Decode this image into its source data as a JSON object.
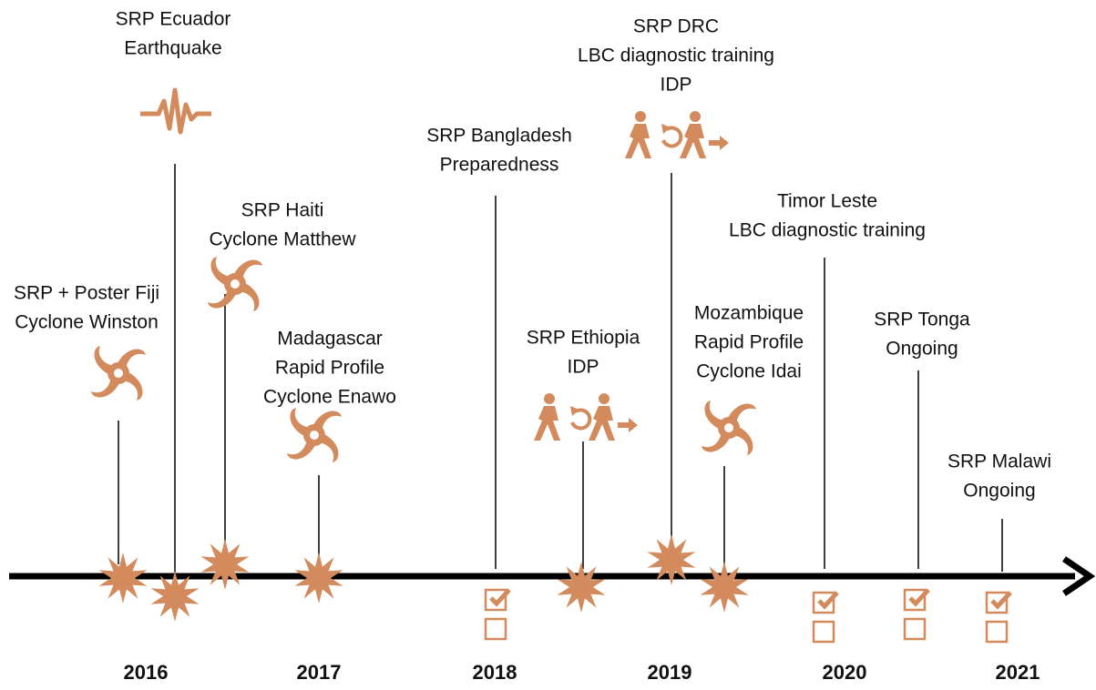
{
  "years": [
    "2016",
    "2017",
    "2018",
    "2019",
    "2020",
    "2021"
  ],
  "events": [
    {
      "lines": [
        "SRP + Poster Fiji",
        "Cyclone Winston"
      ]
    },
    {
      "lines": [
        "SRP Ecuador",
        "Earthquake"
      ]
    },
    {
      "lines": [
        "SRP Haiti",
        "Cyclone Matthew"
      ]
    },
    {
      "lines": [
        "Madagascar",
        "Rapid Profile",
        "Cyclone Enawo"
      ]
    },
    {
      "lines": [
        "SRP Bangladesh",
        "Preparedness"
      ]
    },
    {
      "lines": [
        "SRP Ethiopia",
        "IDP"
      ]
    },
    {
      "lines": [
        "SRP DRC",
        "LBC diagnostic training",
        "IDP"
      ]
    },
    {
      "lines": [
        "Mozambique",
        "Rapid Profile",
        "Cyclone Idai"
      ]
    },
    {
      "lines": [
        "Timor Leste",
        "LBC diagnostic training"
      ]
    },
    {
      "lines": [
        "SRP Tonga",
        "Ongoing"
      ]
    },
    {
      "lines": [
        "SRP Malawi",
        "Ongoing"
      ]
    }
  ]
}
